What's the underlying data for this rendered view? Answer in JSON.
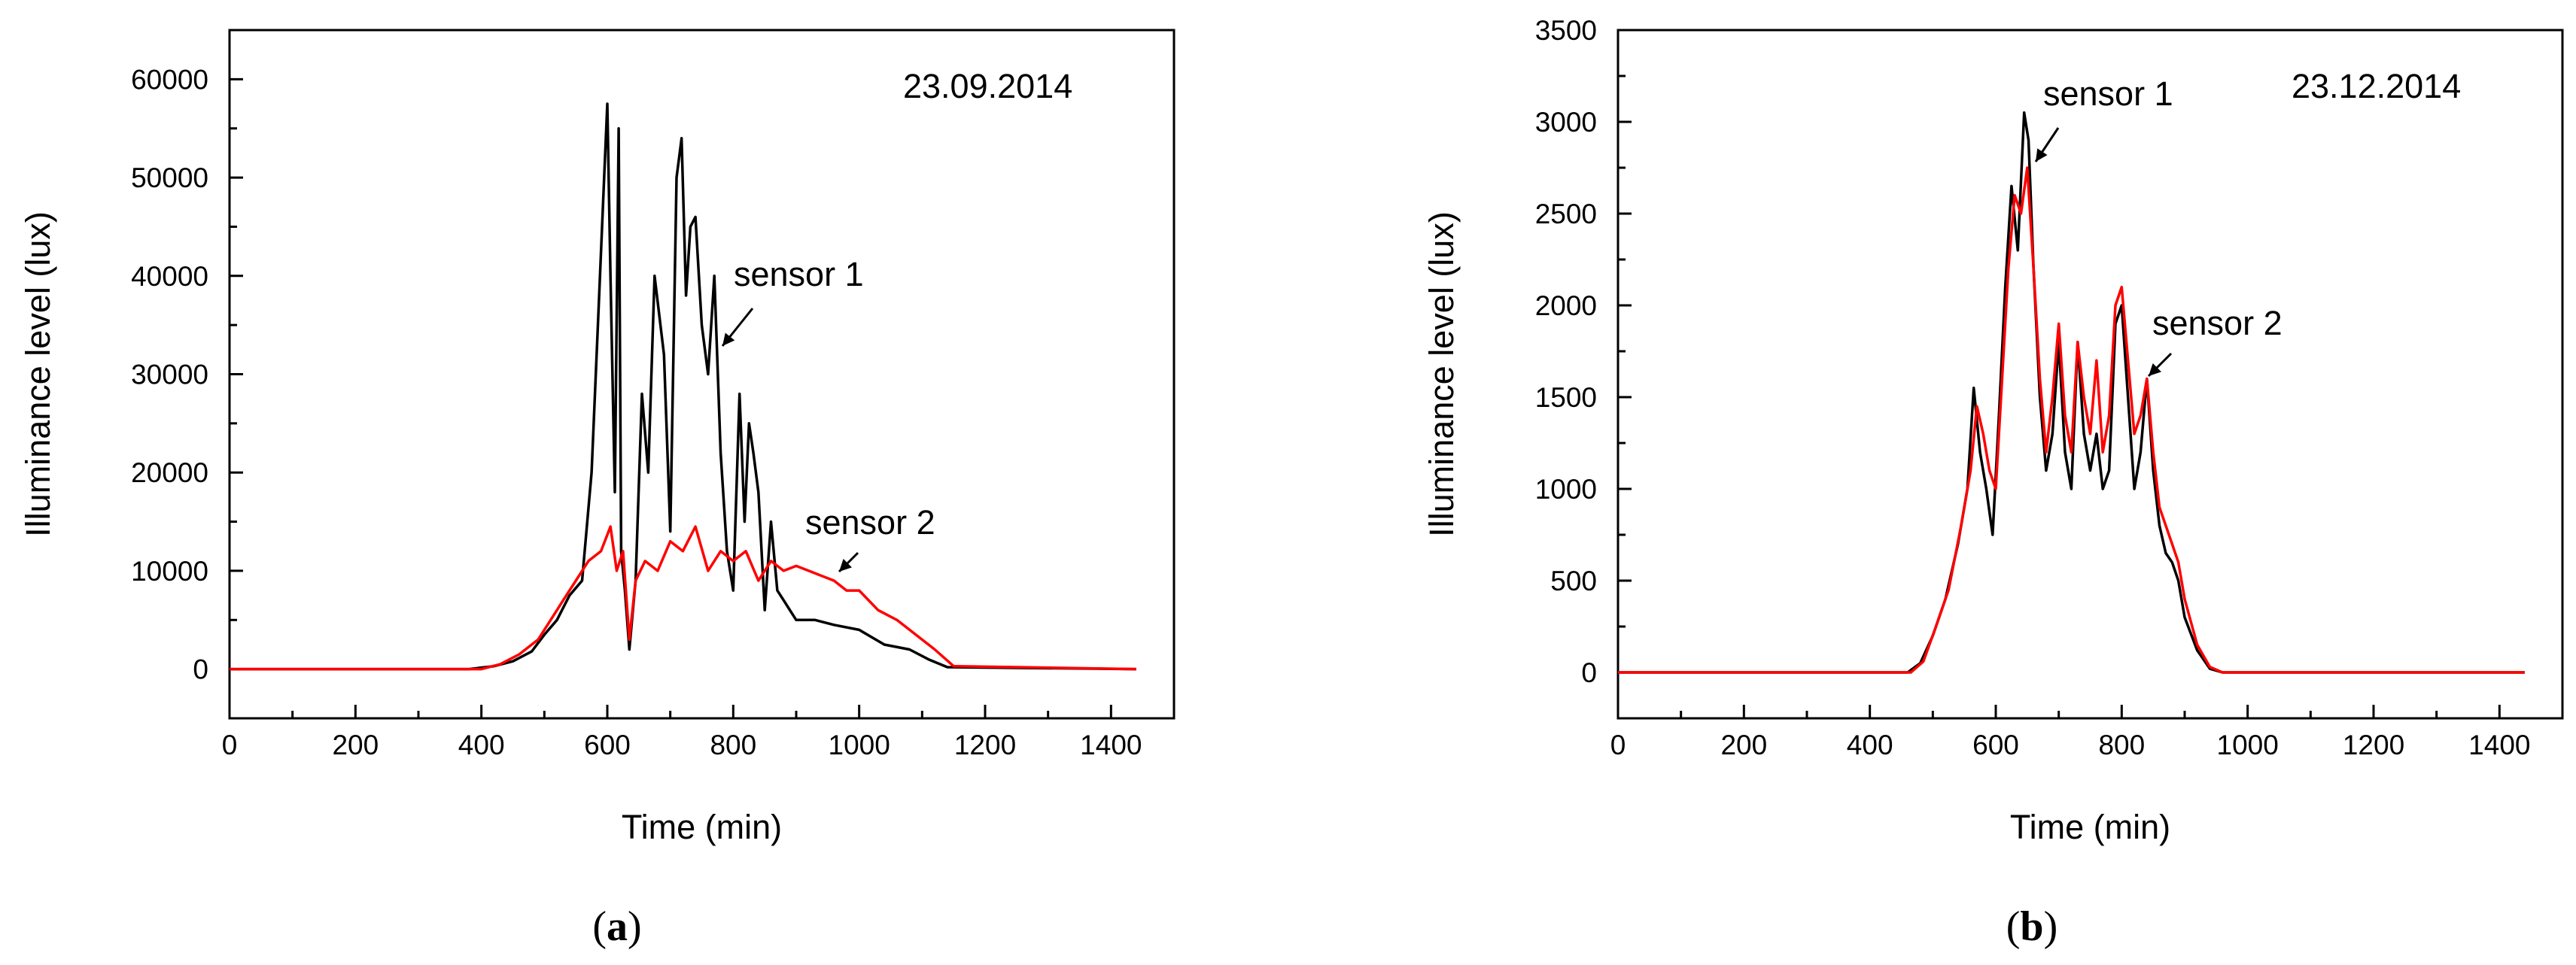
{
  "chart_data": [
    {
      "type": "line",
      "panel_label": "a",
      "date_annotation": "23.09.2014",
      "xlabel": "Time (min)",
      "ylabel": "Illuminance level (lux)",
      "xlim": [
        0,
        1500
      ],
      "ylim": [
        -5000,
        65000
      ],
      "xticks": [
        0,
        200,
        400,
        600,
        800,
        1000,
        1200,
        1400
      ],
      "yticks": [
        0,
        10000,
        20000,
        30000,
        40000,
        50000,
        60000
      ],
      "series": [
        {
          "name": "sensor 1",
          "color": "#000000",
          "x": [
            0,
            380,
            420,
            450,
            480,
            500,
            520,
            540,
            560,
            575,
            585,
            595,
            600,
            605,
            612,
            618,
            622,
            628,
            635,
            645,
            655,
            665,
            675,
            690,
            700,
            710,
            718,
            725,
            732,
            740,
            750,
            760,
            770,
            780,
            790,
            800,
            810,
            818,
            825,
            832,
            840,
            850,
            860,
            870,
            880,
            890,
            900,
            930,
            960,
            1000,
            1040,
            1080,
            1110,
            1140,
            1440
          ],
          "y": [
            0,
            0,
            300,
            800,
            1800,
            3500,
            5000,
            7500,
            9000,
            20000,
            35000,
            50000,
            57500,
            40000,
            18000,
            55000,
            12000,
            8000,
            2000,
            9000,
            28000,
            20000,
            40000,
            32000,
            14000,
            50000,
            54000,
            38000,
            45000,
            46000,
            35000,
            30000,
            40000,
            22000,
            12000,
            8000,
            28000,
            15000,
            25000,
            22000,
            18000,
            6000,
            15000,
            8000,
            7000,
            6000,
            5000,
            5000,
            4500,
            4000,
            2500,
            2000,
            1000,
            200,
            0
          ]
        },
        {
          "name": "sensor 2",
          "color": "#ff0000",
          "x": [
            0,
            400,
            430,
            460,
            490,
            510,
            530,
            550,
            570,
            590,
            605,
            615,
            625,
            635,
            645,
            660,
            680,
            700,
            720,
            740,
            760,
            780,
            800,
            820,
            840,
            860,
            880,
            900,
            920,
            940,
            960,
            980,
            1000,
            1030,
            1060,
            1090,
            1120,
            1150,
            1440
          ],
          "y": [
            0,
            0,
            500,
            1500,
            3000,
            5000,
            7000,
            9000,
            11000,
            12000,
            14500,
            10000,
            12000,
            3000,
            9000,
            11000,
            10000,
            13000,
            12000,
            14500,
            10000,
            12000,
            11000,
            12000,
            9000,
            11000,
            10000,
            10500,
            10000,
            9500,
            9000,
            8000,
            8000,
            6000,
            5000,
            3500,
            2000,
            300,
            0
          ]
        }
      ],
      "annotations": [
        "sensor 1",
        "sensor 2"
      ]
    },
    {
      "type": "line",
      "panel_label": "b",
      "date_annotation": "23.12.2014",
      "xlabel": "Time (min)",
      "ylabel": "Illuminance level (lux)",
      "xlim": [
        0,
        1500
      ],
      "ylim": [
        -250,
        3500
      ],
      "xticks": [
        0,
        200,
        400,
        600,
        800,
        1000,
        1200,
        1400
      ],
      "yticks": [
        0,
        500,
        1000,
        1500,
        2000,
        2500,
        3000,
        3500
      ],
      "series": [
        {
          "name": "sensor 1",
          "color": "#000000",
          "x": [
            0,
            460,
            480,
            500,
            520,
            540,
            555,
            565,
            575,
            585,
            595,
            605,
            615,
            625,
            635,
            645,
            652,
            660,
            670,
            680,
            690,
            700,
            710,
            720,
            730,
            740,
            750,
            760,
            770,
            780,
            790,
            800,
            810,
            820,
            830,
            840,
            850,
            860,
            870,
            880,
            890,
            900,
            920,
            940,
            960,
            980,
            1440
          ],
          "y": [
            0,
            0,
            50,
            200,
            400,
            700,
            1000,
            1550,
            1200,
            1000,
            750,
            1400,
            2100,
            2650,
            2300,
            3050,
            2900,
            2200,
            1500,
            1100,
            1300,
            1800,
            1200,
            1000,
            1800,
            1300,
            1100,
            1300,
            1000,
            1100,
            1900,
            2000,
            1500,
            1000,
            1200,
            1600,
            1100,
            800,
            650,
            600,
            500,
            300,
            120,
            20,
            0,
            0,
            0
          ]
        },
        {
          "name": "sensor 2",
          "color": "#ff0000",
          "x": [
            0,
            465,
            485,
            505,
            525,
            545,
            560,
            570,
            580,
            590,
            600,
            610,
            620,
            630,
            640,
            650,
            660,
            670,
            680,
            690,
            700,
            710,
            720,
            730,
            740,
            750,
            760,
            770,
            780,
            790,
            800,
            810,
            820,
            830,
            840,
            850,
            860,
            870,
            880,
            890,
            900,
            920,
            940,
            960,
            980,
            1440
          ],
          "y": [
            0,
            0,
            60,
            250,
            450,
            800,
            1100,
            1450,
            1300,
            1100,
            1000,
            1600,
            2200,
            2600,
            2500,
            2750,
            2200,
            1600,
            1200,
            1500,
            1900,
            1400,
            1200,
            1800,
            1500,
            1300,
            1700,
            1200,
            1400,
            2000,
            2100,
            1700,
            1300,
            1400,
            1600,
            1200,
            900,
            800,
            700,
            600,
            400,
            150,
            30,
            0,
            0,
            0
          ]
        }
      ],
      "annotations": [
        "sensor 1",
        "sensor 2"
      ]
    }
  ]
}
